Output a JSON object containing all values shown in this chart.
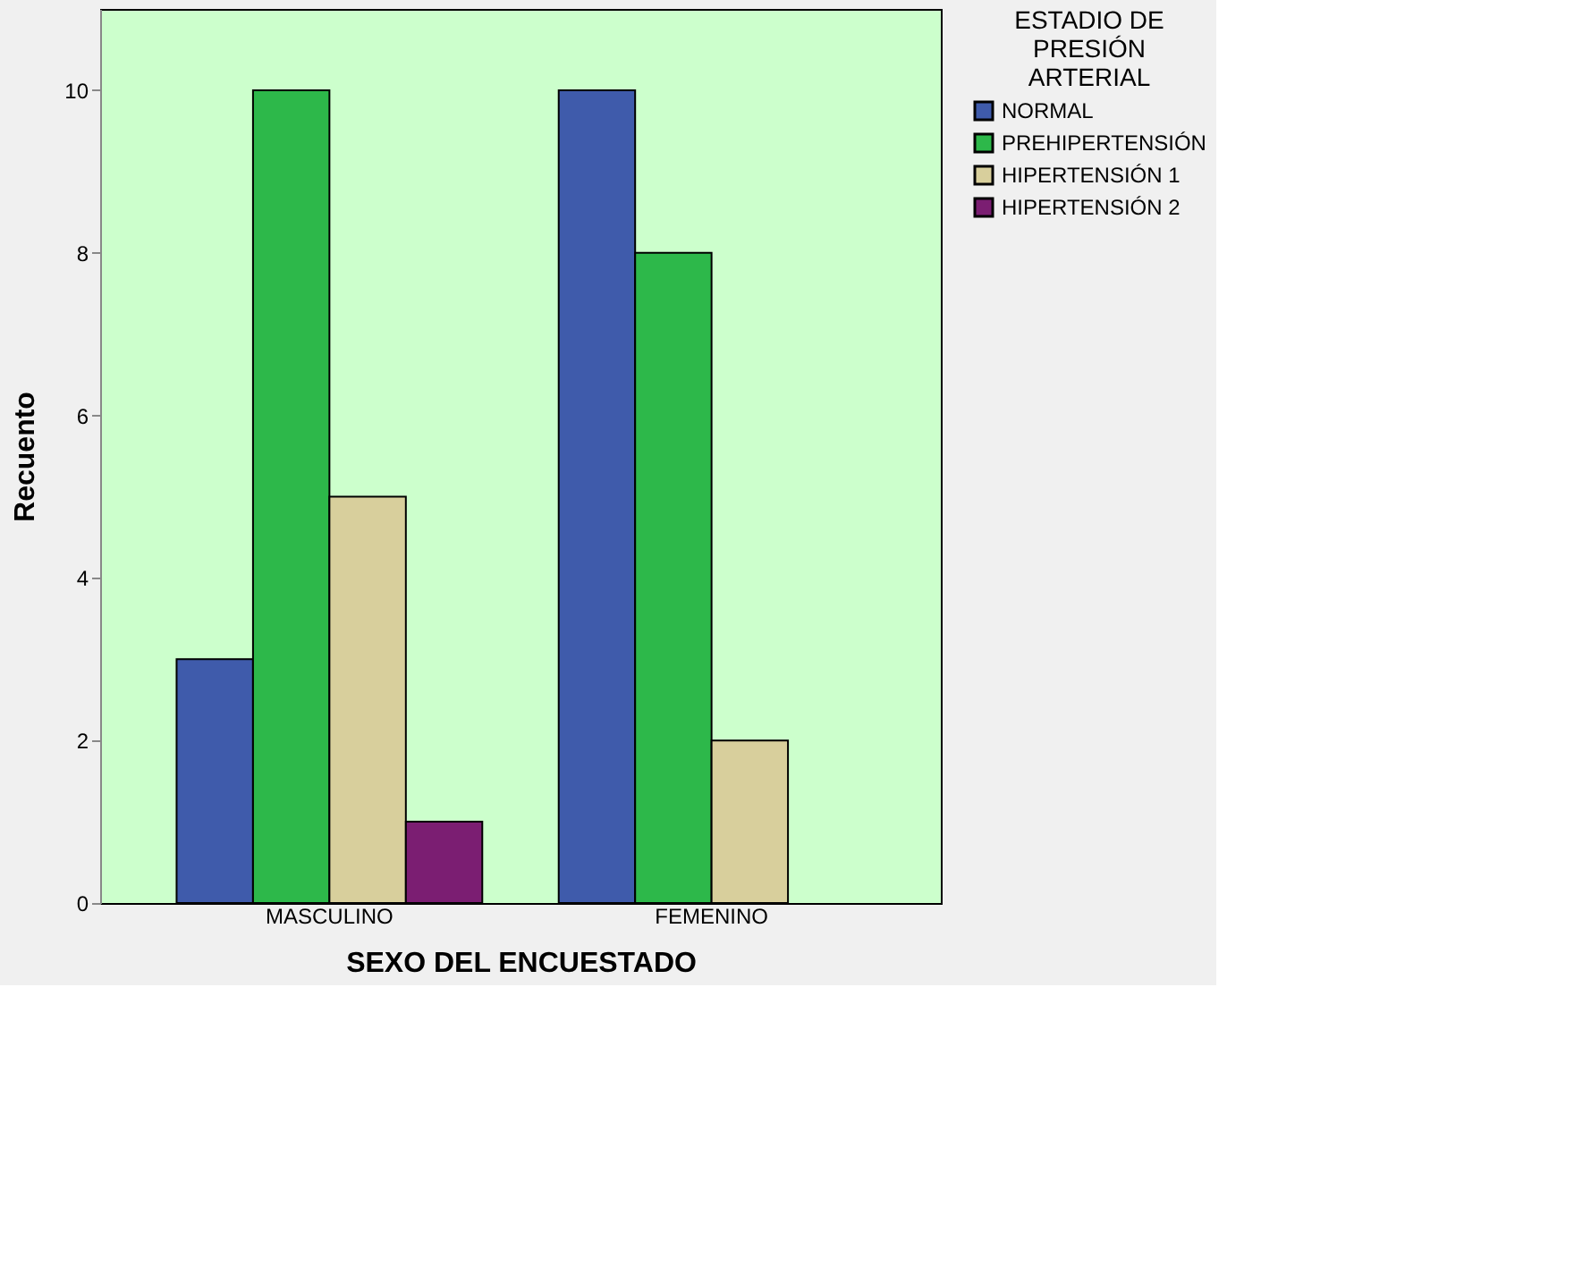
{
  "chart_data": {
    "type": "bar",
    "xlabel": "SEXO DEL ENCUESTADO",
    "ylabel": "Recuento",
    "legend_title": "ESTADIO DE PRESIÓN ARTERIAL",
    "categories": [
      "MASCULINO",
      "FEMENINO"
    ],
    "series": [
      {
        "name": "NORMAL",
        "color": "#3f5bab",
        "values": [
          3,
          10
        ]
      },
      {
        "name": "PREHIPERTENSIÓN",
        "color": "#2db84a",
        "values": [
          10,
          8
        ]
      },
      {
        "name": "HIPERTENSIÓN 1",
        "color": "#d8cf9c",
        "values": [
          5,
          2
        ]
      },
      {
        "name": "HIPERTENSIÓN 2",
        "color": "#7b1e72",
        "values": [
          1,
          null
        ]
      }
    ],
    "ylim": [
      0,
      11
    ],
    "yticks": [
      0,
      2,
      4,
      6,
      8,
      10
    ],
    "grid": false,
    "legend": "right"
  }
}
